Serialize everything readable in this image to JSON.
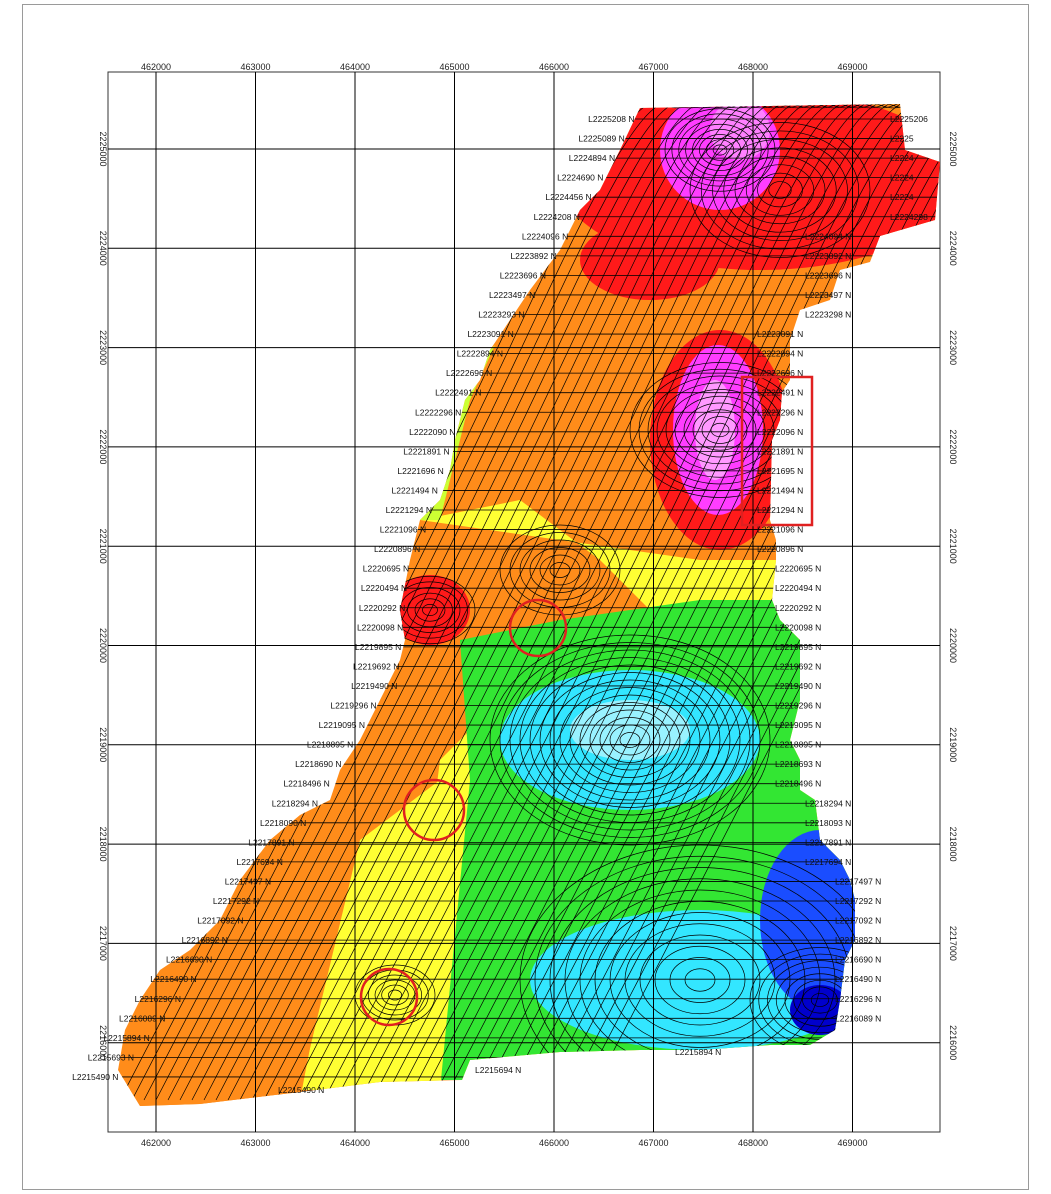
{
  "map": {
    "x_ticks": [
      "462000",
      "463000",
      "464000",
      "465000",
      "466000",
      "467000",
      "468000",
      "469000"
    ],
    "y_ticks_left": [
      "2225000",
      "2224000",
      "2223000",
      "2222000",
      "2221000",
      "2220000",
      "2219000",
      "2218000",
      "2217000",
      "2216000"
    ],
    "y_ticks_right": [
      "2225000",
      "2224000",
      "2223000",
      "2222000",
      "2221000",
      "2220000",
      "2219000",
      "2218000",
      "2217000",
      "2216000"
    ],
    "colors": {
      "magenta": "#ff3dff",
      "red": "#ff1a1a",
      "orange": "#ff8c1a",
      "yellow": "#ffff33",
      "green": "#33e633",
      "cyan": "#33e6ff",
      "blue": "#1a4dff",
      "annotation": "#e02020"
    },
    "left_line_labels": [
      "L2225208 N",
      "L2225089 N",
      "L2224894 N",
      "L2224690 N",
      "L2224456 N",
      "L2224208 N",
      "L2224096 N",
      "L2223892 N",
      "L2223696 N",
      "L2223497 N",
      "L2223293 N",
      "L2223091 N",
      "L2222894 N",
      "L2222696 N",
      "L2222491 N",
      "L2222296 N",
      "L2222090 N",
      "L2221891 N",
      "L2221696 N",
      "L2221494 N",
      "L2221294 N",
      "L2221096 N",
      "L2220896 N",
      "L2220695 N",
      "L2220494 N",
      "L2220292 N",
      "L2220098 N",
      "L2219895 N",
      "L2219692 N",
      "L2219490 N",
      "L2219296 N",
      "L2219095 N",
      "L2218895 N",
      "L2218690 N",
      "L2218496 N",
      "L2218294 N",
      "L2218090 N",
      "L2217891 N",
      "L2217694 N",
      "L2217497 N",
      "L2217292 N",
      "L2217092 N",
      "L2216892 N",
      "L2216690 N",
      "L2216490 N",
      "L2216296 N",
      "L2216089 N",
      "L2215894 N",
      "L2215693 N",
      "L2215490 N"
    ],
    "right_line_labels": [
      "L2225206",
      "L2225",
      "L2224",
      "L2224",
      "L2224",
      "L2224298",
      "L2224094 N",
      "L2223892 N",
      "L2223696 N",
      "L2223497 N",
      "L2223298 N",
      "L2223091 N",
      "L2222894 N",
      "L2222696 N",
      "L2222491 N",
      "L2222296 N",
      "L2222096 N",
      "L2221891 N",
      "L2221695 N",
      "L2221494 N",
      "L2221294 N",
      "L2221096 N",
      "L2220896 N",
      "L2220695 N",
      "L2220494 N",
      "L2220292 N",
      "L2220098 N",
      "L2219895 N",
      "L2219692 N",
      "L2219490 N",
      "L2219296 N",
      "L2219095 N",
      "L2218895 N",
      "L2218693 N",
      "L2218496 N",
      "L2218294 N",
      "L2218093 N",
      "L2217891 N",
      "L2217694 N",
      "L2217497 N",
      "L2217292 N",
      "L2217092 N",
      "L2216892 N",
      "L2216690 N",
      "L2216490 N",
      "L2216296 N",
      "L2216089 N"
    ],
    "bottom_labels": [
      "L2215894 N",
      "L2215694 N",
      "L2215490 N"
    ]
  }
}
